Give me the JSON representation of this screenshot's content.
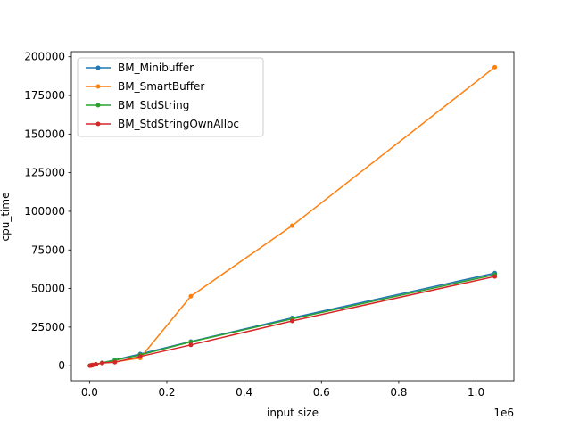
{
  "chart_data": {
    "type": "line",
    "xlabel": "input size",
    "ylabel": "cpu_time",
    "x_offset_label": "1e6",
    "xlim": [
      -47000,
      1098000
    ],
    "ylim": [
      -9700,
      203300
    ],
    "x_ticks": [
      0,
      200000,
      400000,
      600000,
      800000,
      1000000
    ],
    "x_tick_labels": [
      "0.0",
      "0.2",
      "0.4",
      "0.6",
      "0.8",
      "1.0"
    ],
    "y_ticks": [
      0,
      25000,
      50000,
      75000,
      100000,
      125000,
      150000,
      175000,
      200000
    ],
    "y_tick_labels": [
      "0",
      "25000",
      "50000",
      "75000",
      "100000",
      "125000",
      "150000",
      "175000",
      "200000"
    ],
    "grid": false,
    "legend_position": "upper-left",
    "x": [
      1024,
      2048,
      4096,
      8192,
      16384,
      32768,
      65536,
      131072,
      262144,
      524288,
      1048576
    ],
    "series": [
      {
        "name": "BM_Minibuffer",
        "color": "#1f77b4",
        "values": [
          60,
          120,
          240,
          480,
          950,
          1900,
          3800,
          7600,
          15700,
          31000,
          60000
        ]
      },
      {
        "name": "BM_SmartBuffer",
        "color": "#ff7f0e",
        "values": [
          60,
          120,
          240,
          480,
          950,
          1800,
          2500,
          5000,
          45000,
          90700,
          193300
        ]
      },
      {
        "name": "BM_StdString",
        "color": "#2ca02c",
        "values": [
          60,
          115,
          230,
          460,
          920,
          1850,
          3600,
          7000,
          15500,
          30300,
          59000
        ]
      },
      {
        "name": "BM_StdStringOwnAlloc",
        "color": "#d62728",
        "values": [
          55,
          110,
          220,
          440,
          880,
          1750,
          2300,
          6000,
          13500,
          29000,
          57800
        ]
      }
    ]
  }
}
